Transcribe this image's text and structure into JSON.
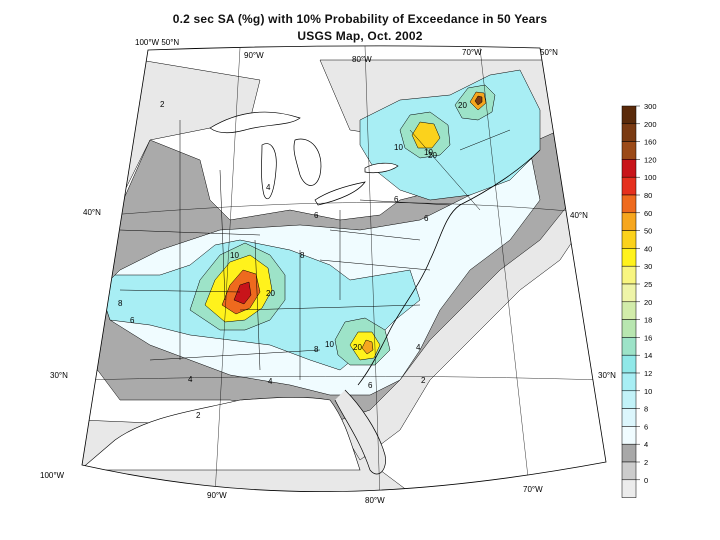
{
  "title": {
    "line1": "0.2 sec SA (%g) with 10% Probability of Exceedance in 50 Years",
    "line2": "USGS Map, Oct. 2002"
  },
  "graticule": {
    "top_left_corner": "100°W 50°N",
    "top_lon": [
      "90°W",
      "80°W",
      "70°W"
    ],
    "top_right_corner": "50°N",
    "left_lat": [
      "40°N",
      "30°N"
    ],
    "right_lat": [
      "40°N",
      "30°N"
    ],
    "bottom_left_corner": "100°W",
    "bottom_lon": [
      "90°W",
      "80°W",
      "70°W"
    ]
  },
  "contour_labels": [
    "2",
    "4",
    "6",
    "8",
    "10",
    "20",
    "4",
    "6",
    "10",
    "20",
    "20",
    "10",
    "6",
    "2",
    "4",
    "6",
    "8",
    "10",
    "20",
    "6",
    "8",
    "4",
    "2"
  ],
  "legend": {
    "values": [
      "300",
      "200",
      "160",
      "120",
      "100",
      "80",
      "60",
      "50",
      "40",
      "30",
      "25",
      "20",
      "18",
      "16",
      "14",
      "12",
      "10",
      "8",
      "6",
      "4",
      "2",
      "0"
    ],
    "colors": [
      "#5a2a0a",
      "#7a3a12",
      "#9b4a18",
      "#c8141a",
      "#e5301e",
      "#ee6a1e",
      "#f6a61e",
      "#fbd21c",
      "#fff21c",
      "#f8f580",
      "#eef4a8",
      "#d2ecaa",
      "#b8e6b0",
      "#9de3c8",
      "#90e8e8",
      "#a8eef4",
      "#c2f2f8",
      "#dcf6fc",
      "#f0fcff",
      "#a8a8a8",
      "#cccccc",
      "#ececec",
      "#ffffff"
    ]
  }
}
